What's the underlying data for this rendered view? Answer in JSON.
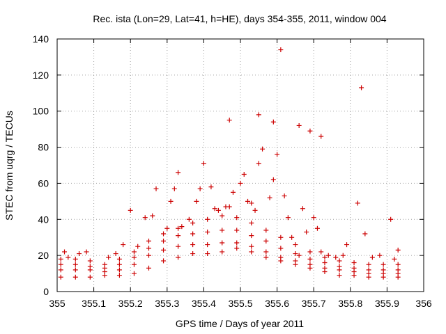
{
  "chart_data": {
    "type": "scatter",
    "title": "Rec. ista (Lon=29, Lat=41, h=HE), days 354-355, 2011, window 004",
    "xlabel": "GPS time / Days of year 2011",
    "ylabel": "STEC from uqrg / TECUs",
    "xlim": [
      355,
      356
    ],
    "ylim": [
      0,
      140
    ],
    "xticks": [
      "355",
      "355.1",
      "355.2",
      "355.3",
      "355.4",
      "355.5",
      "355.6",
      "355.7",
      "355.8",
      "355.9",
      "356"
    ],
    "yticks": [
      "0",
      "20",
      "40",
      "60",
      "80",
      "100",
      "120",
      "140"
    ],
    "grid": true,
    "marker": "+",
    "color": "#cc0000",
    "series_bands": [
      {
        "name": "band-1",
        "x": [
          355.01,
          355.05,
          355.09,
          355.13,
          355.17,
          355.21,
          355.25,
          355.29,
          355.33,
          355.37,
          355.41,
          355.45,
          355.49,
          355.53,
          355.57,
          355.61,
          355.65,
          355.69,
          355.73,
          355.77,
          355.81,
          355.85,
          355.89,
          355.93
        ],
        "y": [
          8,
          8,
          8,
          9,
          9,
          10,
          13,
          17,
          19,
          21,
          21,
          22,
          24,
          22,
          19,
          17,
          15,
          13,
          11,
          9,
          9,
          8,
          8,
          8
        ]
      },
      {
        "name": "band-2",
        "x": [
          355.01,
          355.05,
          355.09,
          355.13,
          355.17,
          355.21,
          355.25,
          355.29,
          355.33,
          355.37,
          355.41,
          355.45,
          355.49,
          355.53,
          355.57,
          355.61,
          355.65,
          355.69,
          355.73,
          355.77,
          355.81,
          355.85,
          355.89,
          355.93
        ],
        "y": [
          12,
          12,
          12,
          11,
          12,
          15,
          20,
          23,
          25,
          26,
          26,
          27,
          27,
          25,
          22,
          19,
          17,
          15,
          13,
          12,
          11,
          10,
          10,
          10
        ]
      },
      {
        "name": "band-3",
        "x": [
          355.01,
          355.05,
          355.09,
          355.13,
          355.17,
          355.21,
          355.25,
          355.29,
          355.33,
          355.37,
          355.41,
          355.45,
          355.49,
          355.53,
          355.57,
          355.61,
          355.65,
          355.69,
          355.73,
          355.77,
          355.81,
          355.85,
          355.89,
          355.93
        ],
        "y": [
          15,
          15,
          14,
          13,
          15,
          19,
          24,
          28,
          31,
          32,
          33,
          34,
          34,
          31,
          28,
          24,
          21,
          18,
          16,
          14,
          13,
          12,
          12,
          12
        ]
      },
      {
        "name": "band-4",
        "x": [
          355.01,
          355.05,
          355.09,
          355.13,
          355.17,
          355.21,
          355.25,
          355.29,
          355.33,
          355.37,
          355.41,
          355.45,
          355.49,
          355.53,
          355.57,
          355.61,
          355.65,
          355.69,
          355.73,
          355.77,
          355.81,
          355.85,
          355.89,
          355.93
        ],
        "y": [
          18,
          18,
          17,
          15,
          18,
          22,
          28,
          32,
          35,
          38,
          40,
          42,
          41,
          38,
          34,
          30,
          26,
          22,
          19,
          17,
          16,
          15,
          15,
          15
        ]
      }
    ],
    "series_scattered": {
      "x": [
        355.02,
        355.03,
        355.06,
        355.08,
        355.14,
        355.16,
        355.18,
        355.2,
        355.22,
        355.24,
        355.26,
        355.27,
        355.3,
        355.31,
        355.32,
        355.34,
        355.36,
        355.38,
        355.39,
        355.4,
        355.42,
        355.43,
        355.44,
        355.46,
        355.47,
        355.48,
        355.5,
        355.51,
        355.52,
        355.53,
        355.54,
        355.55,
        355.56,
        355.58,
        355.59,
        355.6,
        355.62,
        355.63,
        355.64,
        355.66,
        355.67,
        355.68,
        355.7,
        355.71,
        355.72,
        355.74,
        355.76,
        355.78,
        355.79,
        355.82,
        355.84,
        355.86,
        355.88,
        355.91,
        355.92,
        355.93
      ],
      "y": [
        22,
        19,
        21,
        22,
        19,
        21,
        26,
        45,
        25,
        41,
        42,
        57,
        35,
        50,
        57,
        36,
        40,
        50,
        57,
        71,
        58,
        46,
        45,
        47,
        47,
        55,
        60,
        65,
        50,
        49,
        45,
        71,
        79,
        52,
        62,
        76,
        53,
        41,
        30,
        20,
        46,
        33,
        41,
        35,
        22,
        20,
        19,
        20,
        26,
        49,
        32,
        19,
        20,
        40,
        18,
        23
      ]
    },
    "outliers": {
      "x": [
        355.33,
        355.47,
        355.55,
        355.59,
        355.61,
        355.66,
        355.69,
        355.72,
        355.83
      ],
      "y": [
        66,
        95,
        98,
        94,
        134,
        92,
        89,
        86,
        113
      ]
    }
  }
}
